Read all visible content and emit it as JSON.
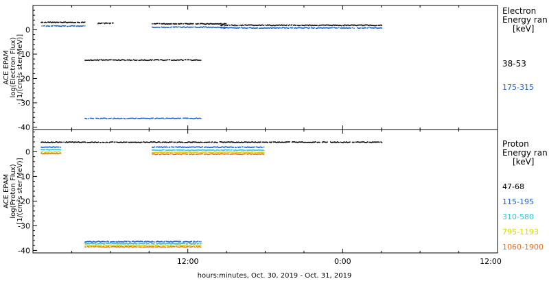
{
  "xlabel": "hours:minutes, Oct. 30, 2019 - Oct. 31, 2019",
  "x_ticks": [
    "12:00",
    "0:00",
    "12:00"
  ],
  "chart_data": [
    {
      "type": "scatter",
      "ylabel": [
        "ACE EPAM",
        "log(Electron Flux)",
        "[1/(cm²s ster MeV)]"
      ],
      "ylim": [
        -41,
        10
      ],
      "y_ticks": [
        "0",
        "-10",
        "-20",
        "-30",
        "-40"
      ],
      "legend_title": [
        "Electron",
        "Energy ran",
        "[keV]"
      ],
      "series": [
        {
          "name": "38-53",
          "color": "#000000",
          "segments": [
            [
              0.6,
              4.0,
              3.0
            ],
            [
              5.0,
              6.2,
              2.6
            ],
            [
              9.2,
              15.0,
              2.4
            ],
            [
              14.5,
              27.0,
              1.8
            ]
          ],
          "low_segments": [
            [
              4.0,
              13.0,
              -12.5
            ]
          ]
        },
        {
          "name": "175-315",
          "color": "#1e5fc8",
          "segments": [
            [
              0.6,
              4.0,
              1.5
            ],
            [
              9.2,
              15.0,
              1.0
            ],
            [
              14.5,
              27.0,
              0.7
            ]
          ],
          "low_segments": [
            [
              4.0,
              13.0,
              -36.5
            ]
          ]
        }
      ]
    },
    {
      "type": "scatter",
      "ylabel": [
        "ACE EPAM",
        "log(Proton Flux)",
        "[1/(cm²s ster MeV)]"
      ],
      "ylim": [
        -41,
        9
      ],
      "y_ticks": [
        "0",
        "-10",
        "-20",
        "-30",
        "-40"
      ],
      "legend_title": [
        "Proton",
        "Energy ran",
        "[keV]"
      ],
      "series": [
        {
          "name": "47-68",
          "color": "#000000",
          "segments": [
            [
              0.6,
              27.0,
              3.8
            ]
          ],
          "low_segments": []
        },
        {
          "name": "115-195",
          "color": "#1e5fc8",
          "segments": [
            [
              0.6,
              2.1,
              1.8
            ],
            [
              9.2,
              17.9,
              1.8
            ]
          ],
          "low_segments": [
            [
              4.0,
              13.0,
              -36.5
            ]
          ]
        },
        {
          "name": "310-580",
          "color": "#20c8e0",
          "segments": [
            [
              0.6,
              2.1,
              0.8
            ],
            [
              9.2,
              17.9,
              0.6
            ]
          ],
          "low_segments": [
            [
              4.0,
              13.0,
              -37.3
            ]
          ]
        },
        {
          "name": "795-1193",
          "color": "#d8d800",
          "segments": [
            [
              0.6,
              2.1,
              -0.2
            ],
            [
              9.2,
              17.9,
              -0.3
            ]
          ],
          "low_segments": [
            [
              4.0,
              13.0,
              -38.0
            ]
          ]
        },
        {
          "name": "1060-1900",
          "color": "#e07020",
          "segments": [
            [
              0.6,
              2.1,
              -0.8
            ],
            [
              9.2,
              17.9,
              -1.0
            ]
          ],
          "low_segments": [
            [
              4.0,
              13.0,
              -38.6
            ]
          ]
        }
      ]
    }
  ]
}
